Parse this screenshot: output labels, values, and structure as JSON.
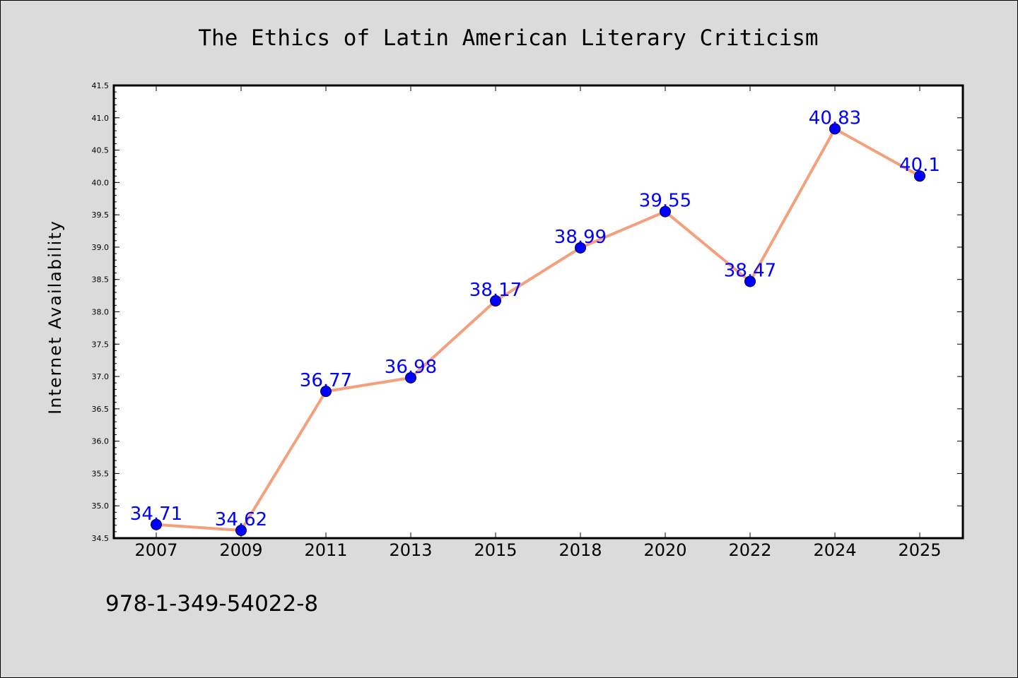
{
  "figure": {
    "footer_text": "978-1-349-54022-8"
  },
  "colors": {
    "background": "#dbdbdb",
    "plot_background": "#ffffff",
    "line": "#f4a07c",
    "marker": "#0000ff",
    "data_label": "#0000ff"
  },
  "chart_data": {
    "type": "line",
    "title": "The Ethics of Latin American Literary Criticism",
    "xlabel": "",
    "ylabel": "Internet Availability",
    "categories": [
      "2007",
      "2009",
      "2011",
      "2013",
      "2015",
      "2018",
      "2020",
      "2022",
      "2024",
      "2025"
    ],
    "series": [
      {
        "values": [
          34.71,
          34.62,
          36.77,
          36.98,
          38.17,
          38.99,
          39.55,
          38.47,
          40.83,
          40.1
        ],
        "data_labels": [
          "34.71",
          "34.62",
          "36.77",
          "36.98",
          "38.17",
          "38.99",
          "39.55",
          "38.47",
          "40.83",
          "40.1"
        ]
      }
    ],
    "ylim": [
      34.5,
      41.5
    ],
    "yticks": [
      "34.5",
      "35.0",
      "35.5",
      "36.0",
      "36.5",
      "37.0",
      "37.5",
      "38.0",
      "38.5",
      "39.0",
      "39.5",
      "40.0",
      "40.5",
      "41.0",
      "41.5"
    ],
    "grid": false,
    "legend": "none",
    "markers": true
  }
}
